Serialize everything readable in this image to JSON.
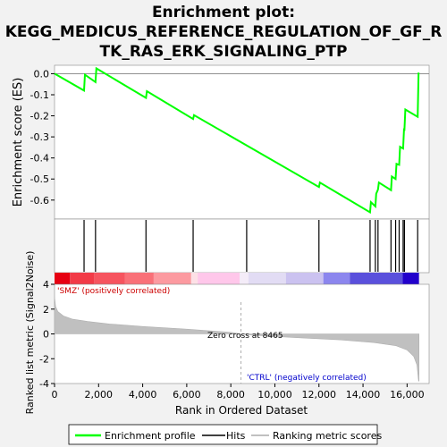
{
  "chart_data": {
    "type": "line",
    "title_lines": [
      "Enrichment plot:",
      "KEGG_MEDICUS_REFERENCE_REGULATION_OF_GF_R",
      "TK_RAS_ERK_SIGNALING_PTP"
    ],
    "es_panel": {
      "ylabel": "Enrichment score (ES)",
      "ylim": [
        -0.69,
        0.04
      ],
      "yticks": [
        "0.0",
        "-0.1",
        "-0.2",
        "-0.3",
        "-0.4",
        "-0.5",
        "-0.6"
      ],
      "ytick_values": [
        0.0,
        -0.1,
        -0.2,
        -0.3,
        -0.4,
        -0.5,
        -0.6
      ],
      "color": "#00ff00",
      "points": [
        [
          0,
          0.0
        ],
        [
          1340,
          -0.08
        ],
        [
          1380,
          -0.005
        ],
        [
          1860,
          -0.04
        ],
        [
          1900,
          0.025
        ],
        [
          4150,
          -0.115
        ],
        [
          4190,
          -0.083
        ],
        [
          6290,
          -0.215
        ],
        [
          6330,
          -0.197
        ],
        [
          12000,
          -0.538
        ],
        [
          12040,
          -0.517
        ],
        [
          14320,
          -0.658
        ],
        [
          14360,
          -0.61
        ],
        [
          14560,
          -0.63
        ],
        [
          14600,
          -0.57
        ],
        [
          14680,
          -0.55
        ],
        [
          14720,
          -0.517
        ],
        [
          15270,
          -0.553
        ],
        [
          15310,
          -0.488
        ],
        [
          15480,
          -0.5
        ],
        [
          15520,
          -0.428
        ],
        [
          15640,
          -0.433
        ],
        [
          15680,
          -0.347
        ],
        [
          15820,
          -0.355
        ],
        [
          15860,
          -0.265
        ],
        [
          15880,
          -0.266
        ],
        [
          15920,
          -0.17
        ],
        [
          16480,
          -0.205
        ],
        [
          16520,
          0.005
        ]
      ]
    },
    "hits": [
      1340,
      1860,
      4150,
      6290,
      8720,
      12000,
      14320,
      14560,
      14680,
      15270,
      15480,
      15640,
      15820,
      15880,
      16480
    ],
    "ranked_panel": {
      "ylabel": "Ranked list metric (Signal2Noise)",
      "ylim": [
        -4,
        4
      ],
      "yticks": [
        "4",
        "2",
        "0",
        "-2",
        "-4"
      ],
      "ytick_values": [
        4,
        2,
        0,
        -2,
        -4
      ],
      "color": "#c0c0c0",
      "zero_cross_label": "Zero cross at 8465",
      "zero_cross": 8465,
      "pos_label": "'SMZ' (positively correlated)",
      "neg_label": "'CTRL' (negatively correlated)",
      "curve": [
        [
          0,
          3.0
        ],
        [
          50,
          2.2
        ],
        [
          150,
          1.8
        ],
        [
          400,
          1.45
        ],
        [
          800,
          1.2
        ],
        [
          1500,
          1.0
        ],
        [
          2500,
          0.8
        ],
        [
          4000,
          0.6
        ],
        [
          6000,
          0.38
        ],
        [
          8000,
          0.12
        ],
        [
          8465,
          0.0
        ],
        [
          9000,
          -0.1
        ],
        [
          11000,
          -0.3
        ],
        [
          13000,
          -0.48
        ],
        [
          14500,
          -0.7
        ],
        [
          15500,
          -0.95
        ],
        [
          16000,
          -1.3
        ],
        [
          16300,
          -1.8
        ],
        [
          16450,
          -2.5
        ],
        [
          16520,
          -3.8
        ],
        [
          16540,
          -3.8
        ]
      ]
    },
    "heat_bands": [
      {
        "to": 700,
        "color": "#e60012"
      },
      {
        "to": 1800,
        "color": "#f23a47"
      },
      {
        "to": 3200,
        "color": "#f6545f"
      },
      {
        "to": 4500,
        "color": "#f97078"
      },
      {
        "to": 6200,
        "color": "#fc9aa0"
      },
      {
        "to": 6500,
        "color": "#fde0e6"
      },
      {
        "to": 8400,
        "color": "#ffc7ea"
      },
      {
        "to": 8800,
        "color": "#f4ecf8"
      },
      {
        "to": 10500,
        "color": "#e2dcf4"
      },
      {
        "to": 12200,
        "color": "#cbc2f0"
      },
      {
        "to": 13400,
        "color": "#8c86ee"
      },
      {
        "to": 15800,
        "color": "#5a50dc"
      },
      {
        "to": 16540,
        "color": "#2200cc"
      }
    ],
    "xlabel": "Rank in Ordered Dataset",
    "xlim": [
      0,
      17000
    ],
    "xticks": [
      "0",
      "2,000",
      "4,000",
      "6,000",
      "8,000",
      "10,000",
      "12,000",
      "14,000",
      "16,000"
    ],
    "xtick_values": [
      0,
      2000,
      4000,
      6000,
      8000,
      10000,
      12000,
      14000,
      16000
    ],
    "legend": [
      {
        "label": "Enrichment profile",
        "color": "#00ff00"
      },
      {
        "label": "Hits",
        "color": "#000000"
      },
      {
        "label": "Ranking metric scores",
        "color": "#c0c0c0"
      }
    ]
  }
}
